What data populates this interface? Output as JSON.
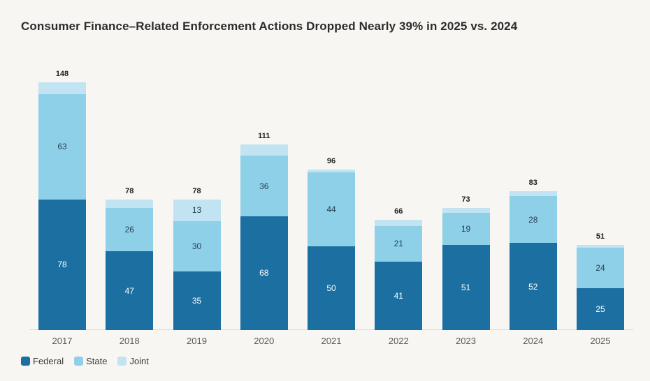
{
  "title": "Consumer Finance–Related Enforcement Actions Dropped Nearly 39% in 2025 vs. 2024",
  "colors": {
    "background": "#f7f6f3",
    "federal": "#1c6fa1",
    "state": "#8dd0e8",
    "joint": "#c2e3f2",
    "axis_line": "#dedcd6",
    "title_text": "#2c2c2c",
    "year_label": "#585858",
    "total_label": "#1d1d1d",
    "label_on_dark": "#ffffff",
    "label_on_light": "#28404f",
    "legend_text": "#3a3a3a"
  },
  "legend": [
    {
      "key": "federal",
      "label": "Federal"
    },
    {
      "key": "state",
      "label": "State"
    },
    {
      "key": "joint",
      "label": "Joint"
    }
  ],
  "chart_data": {
    "type": "bar",
    "stacked": true,
    "title": "Consumer Finance–Related Enforcement Actions Dropped Nearly 39% in 2025 vs. 2024",
    "categories": [
      "2017",
      "2018",
      "2019",
      "2020",
      "2021",
      "2022",
      "2023",
      "2024",
      "2025"
    ],
    "series": [
      {
        "name": "Federal",
        "key": "federal",
        "values": [
          78,
          47,
          35,
          68,
          50,
          41,
          51,
          52,
          25
        ]
      },
      {
        "name": "State",
        "key": "state",
        "values": [
          63,
          26,
          30,
          36,
          44,
          21,
          19,
          28,
          24
        ]
      },
      {
        "name": "Joint",
        "key": "joint",
        "values": [
          7,
          5,
          13,
          7,
          2,
          4,
          3,
          3,
          2
        ]
      }
    ],
    "totals": [
      148,
      78,
      78,
      111,
      96,
      66,
      73,
      83,
      51
    ],
    "xlabel": "",
    "ylabel": "",
    "ylim": [
      0,
      155
    ],
    "grid": false,
    "legend_position": "bottom-left"
  }
}
